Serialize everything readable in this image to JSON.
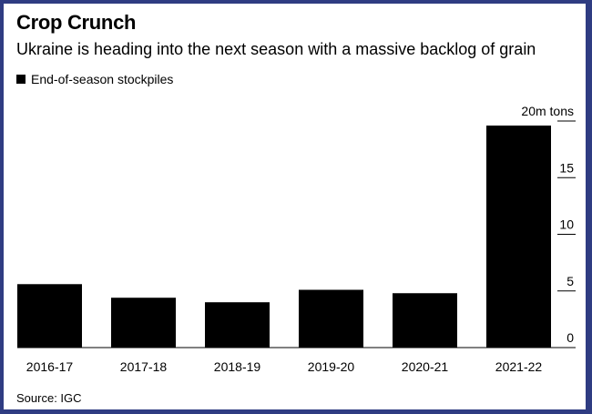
{
  "title": "Crop Crunch",
  "subtitle": "Ukraine is heading into the next season with a massive backlog of grain",
  "legend": {
    "label": "End-of-season stockpiles",
    "color": "#000000"
  },
  "source": "Source: IGC",
  "colors": {
    "frame": "#2f3c82",
    "bar": "#000000",
    "background": "#ffffff"
  },
  "chart_data": {
    "type": "bar",
    "title": "Crop Crunch",
    "subtitle": "Ukraine is heading into the next season with a massive backlog of grain",
    "xlabel": "",
    "ylabel": "",
    "categories": [
      "2016-17",
      "2017-18",
      "2018-19",
      "2019-20",
      "2020-21",
      "2021-22"
    ],
    "series": [
      {
        "name": "End-of-season stockpiles",
        "values": [
          5.6,
          4.4,
          4.0,
          5.1,
          4.8,
          19.6
        ]
      }
    ],
    "ylim": [
      0,
      20
    ],
    "yticks": [
      0,
      5,
      10,
      15,
      20
    ],
    "ytick_labels": [
      "0",
      "5",
      "10",
      "15",
      "20m tons"
    ],
    "y_axis_position": "right",
    "grid": false,
    "legend_position": "top-left"
  }
}
